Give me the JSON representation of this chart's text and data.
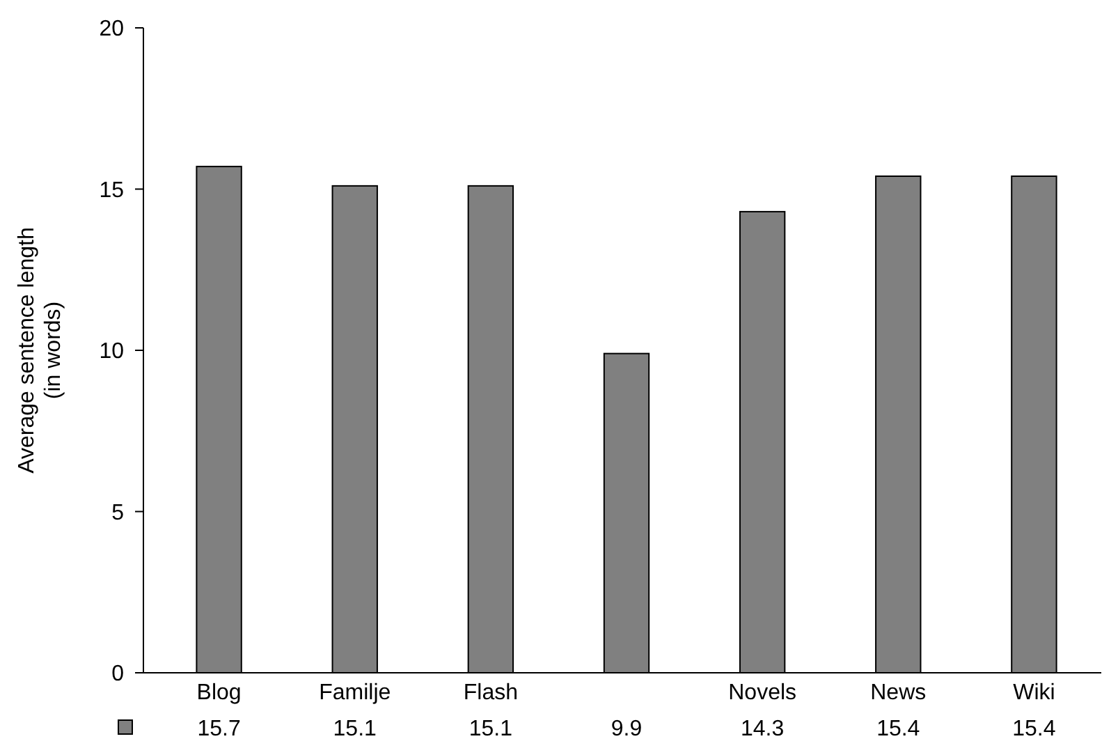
{
  "chart_data": {
    "type": "bar",
    "ylabel": "Average sentence length\n(in words)",
    "categories": [
      "Blog",
      "Familje",
      "Flash",
      null,
      "Novels",
      "News",
      "Wiki"
    ],
    "values": [
      15.7,
      15.1,
      15.1,
      9.9,
      14.3,
      15.4,
      15.4
    ],
    "color": "#808080",
    "ylim": [
      0,
      20
    ],
    "yticks": [
      0,
      5,
      10,
      15,
      20
    ],
    "grid": false,
    "data_labels": true
  }
}
